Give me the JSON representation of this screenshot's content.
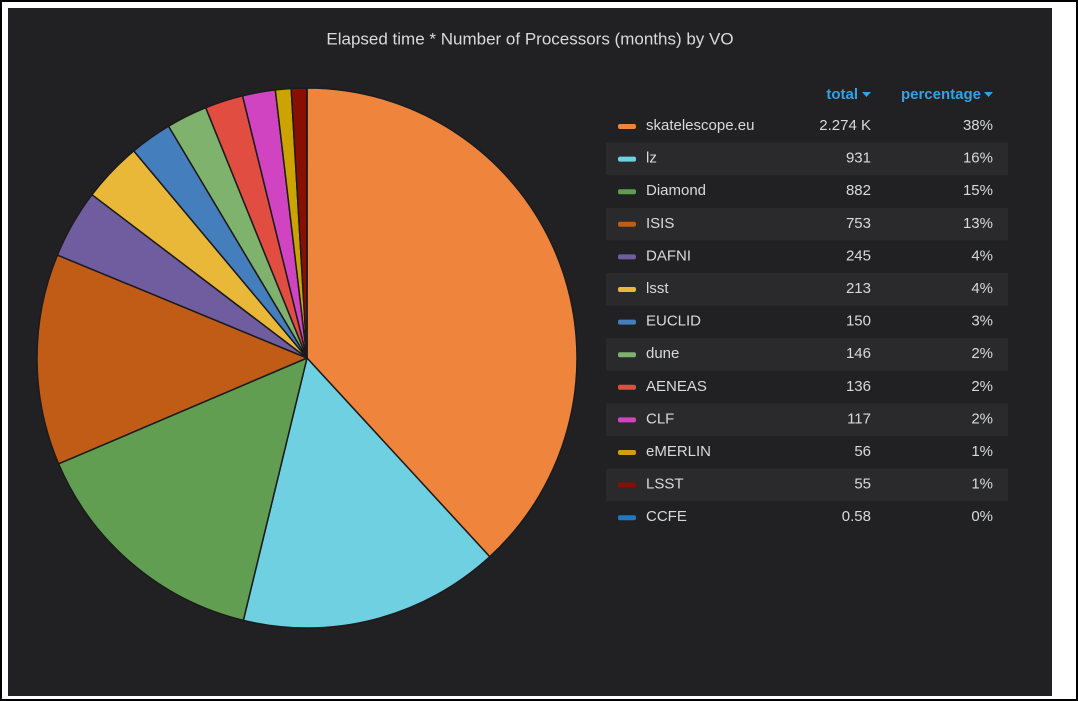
{
  "chart_data": {
    "type": "pie",
    "title": "Elapsed time * Number of Processors (months) by VO",
    "columns": [
      "total",
      "percentage"
    ],
    "categories": [
      "skatelescope.eu",
      "lz",
      "Diamond",
      "ISIS",
      "DAFNI",
      "lsst",
      "EUCLID",
      "dune",
      "AENEAS",
      "CLF",
      "eMERLIN",
      "LSST",
      "CCFE"
    ],
    "values": [
      2274,
      931,
      882,
      753,
      245,
      213,
      150,
      146,
      136,
      117,
      56,
      55,
      0.58
    ],
    "value_labels": [
      "2.274 K",
      "931",
      "882",
      "753",
      "245",
      "213",
      "150",
      "146",
      "136",
      "117",
      "56",
      "55",
      "0.58"
    ],
    "percentages": [
      38,
      16,
      15,
      13,
      4,
      4,
      3,
      2,
      2,
      2,
      1,
      1,
      0
    ],
    "percentage_labels": [
      "38%",
      "16%",
      "15%",
      "13%",
      "4%",
      "4%",
      "3%",
      "2%",
      "2%",
      "2%",
      "1%",
      "1%",
      "0%"
    ],
    "colors": [
      "#ef843c",
      "#6ed0e0",
      "#629e51",
      "#c15c17",
      "#705da0",
      "#eab839",
      "#447ebc",
      "#7eb26d",
      "#e24d42",
      "#d144c1",
      "#cca300",
      "#890f02",
      "#1f78c1"
    ],
    "legend": "right"
  }
}
